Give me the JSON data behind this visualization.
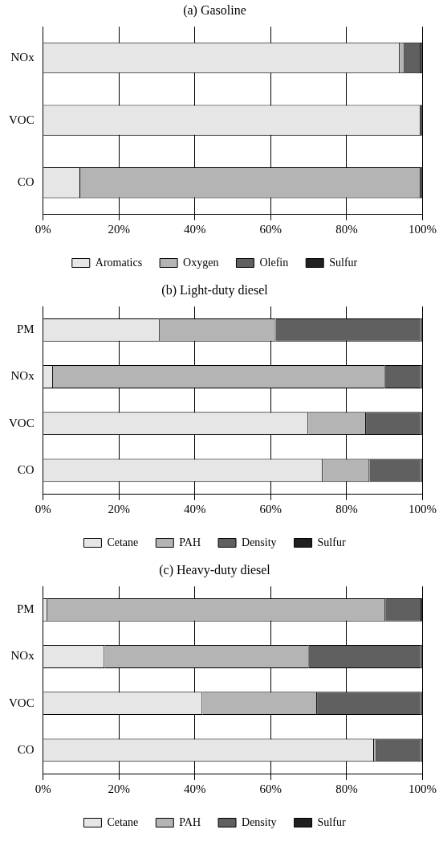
{
  "chart_data": [
    {
      "type": "bar",
      "title": "(a) Gasoline",
      "orientation": "horizontal",
      "stacked": true,
      "categories": [
        "NOx",
        "VOC",
        "CO"
      ],
      "series": [
        {
          "name": "Aromatics",
          "color": "#e6e6e6",
          "values": [
            94,
            99.5,
            9.8
          ]
        },
        {
          "name": "Oxygen",
          "color": "#b4b4b4",
          "values": [
            1.2,
            0,
            89.7
          ]
        },
        {
          "name": "Olefin",
          "color": "#606060",
          "values": [
            4.3,
            0,
            0
          ]
        },
        {
          "name": "Sulfur",
          "color": "#202020",
          "values": [
            0.5,
            0.5,
            0.5
          ]
        }
      ],
      "xlim": [
        0,
        100
      ],
      "xticks": [
        {
          "value": 0,
          "label": "0%"
        },
        {
          "value": 20,
          "label": "20%"
        },
        {
          "value": 40,
          "label": "40%"
        },
        {
          "value": 60,
          "label": "60%"
        },
        {
          "value": 80,
          "label": "80%"
        },
        {
          "value": 100,
          "label": "100%"
        }
      ],
      "grid": "x",
      "legend": "bottom"
    },
    {
      "type": "bar",
      "title": "(b) Light-duty diesel",
      "orientation": "horizontal",
      "stacked": true,
      "categories": [
        "PM",
        "NOx",
        "VOC",
        "CO"
      ],
      "series": [
        {
          "name": "Cetane",
          "color": "#e6e6e6",
          "values": [
            30.7,
            2.6,
            69.9,
            73.7
          ]
        },
        {
          "name": "PAH",
          "color": "#b4b4b4",
          "values": [
            30.6,
            87.5,
            15.2,
            12.3
          ]
        },
        {
          "name": "Density",
          "color": "#606060",
          "values": [
            38.3,
            9.5,
            14.5,
            13.6
          ]
        },
        {
          "name": "Sulfur",
          "color": "#202020",
          "values": [
            0.4,
            0.4,
            0.4,
            0.4
          ]
        }
      ],
      "xlim": [
        0,
        100
      ],
      "xticks": [
        {
          "value": 0,
          "label": "0%"
        },
        {
          "value": 20,
          "label": "20%"
        },
        {
          "value": 40,
          "label": "40%"
        },
        {
          "value": 60,
          "label": "60%"
        },
        {
          "value": 80,
          "label": "80%"
        },
        {
          "value": 100,
          "label": "100%"
        }
      ],
      "grid": "x",
      "legend": "bottom"
    },
    {
      "type": "bar",
      "title": "(c) Heavy-duty diesel",
      "orientation": "horizontal",
      "stacked": true,
      "categories": [
        "PM",
        "NOx",
        "VOC",
        "CO"
      ],
      "series": [
        {
          "name": "Cetane",
          "color": "#e6e6e6",
          "values": [
            1.1,
            16.2,
            42,
            87.2
          ]
        },
        {
          "name": "PAH",
          "color": "#b4b4b4",
          "values": [
            89.1,
            53.8,
            30.2,
            0.6
          ]
        },
        {
          "name": "Density",
          "color": "#606060",
          "values": [
            9.5,
            29.6,
            27.4,
            11.8
          ]
        },
        {
          "name": "Sulfur",
          "color": "#202020",
          "values": [
            0.4,
            0.4,
            0.4,
            0.4
          ]
        }
      ],
      "xlim": [
        0,
        100
      ],
      "xticks": [
        {
          "value": 0,
          "label": "0%"
        },
        {
          "value": 20,
          "label": "20%"
        },
        {
          "value": 40,
          "label": "40%"
        },
        {
          "value": 60,
          "label": "60%"
        },
        {
          "value": 80,
          "label": "80%"
        },
        {
          "value": 100,
          "label": "100%"
        }
      ],
      "grid": "x",
      "legend": "bottom"
    }
  ]
}
